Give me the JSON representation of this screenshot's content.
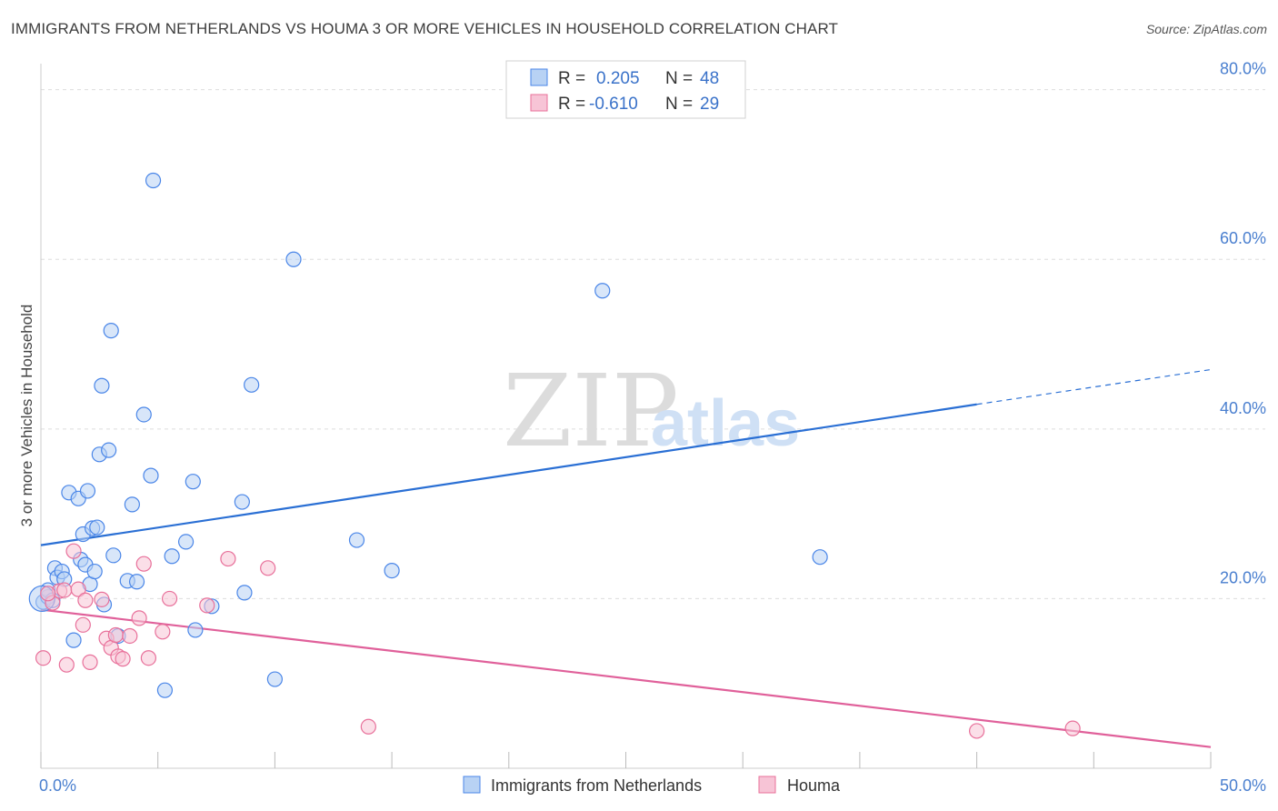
{
  "title": "IMMIGRANTS FROM NETHERLANDS VS HOUMA 3 OR MORE VEHICLES IN HOUSEHOLD CORRELATION CHART",
  "source": "Source: ZipAtlas.com",
  "watermark": {
    "zip": "ZIP",
    "atlas": "atlas"
  },
  "colors": {
    "blue": "#4a86e8",
    "blue_fill": "#b8d2f4",
    "blue_line": "#2a6fd4",
    "pink": "#e8709a",
    "pink_fill": "#f7c4d6",
    "pink_line": "#e0609a",
    "tick": "#4a7fcf",
    "grid": "#dddddd"
  },
  "legend": {
    "rows": [
      {
        "r_label": "R =",
        "r_value": "0.205",
        "n_label": "N =",
        "n_value": "48"
      },
      {
        "r_label": "R =",
        "r_value": "-0.610",
        "n_label": "N =",
        "n_value": "29"
      }
    ]
  },
  "chart_data": {
    "type": "scatter",
    "title": "IMMIGRANTS FROM NETHERLANDS VS HOUMA 3 OR MORE VEHICLES IN HOUSEHOLD CORRELATION CHART",
    "xlabel": "",
    "ylabel": "3 or more Vehicles in Household",
    "xlim": [
      0,
      50
    ],
    "ylim": [
      0,
      82
    ],
    "x_tick_labels": [
      "0.0%",
      "50.0%"
    ],
    "y_ticks": [
      20,
      40,
      60,
      80
    ],
    "y_tick_labels": [
      "20.0%",
      "40.0%",
      "60.0%",
      "80.0%"
    ],
    "grid": true,
    "series": [
      {
        "name": "Immigrants from Netherlands",
        "color": "#4a86e8",
        "points": [
          [
            0.1,
            19.6
          ],
          [
            0.3,
            20.2
          ],
          [
            0.3,
            21.0
          ],
          [
            0.5,
            19.8
          ],
          [
            0.6,
            23.6
          ],
          [
            0.7,
            22.5
          ],
          [
            0.9,
            23.2
          ],
          [
            1.0,
            22.3
          ],
          [
            1.2,
            32.5
          ],
          [
            1.4,
            15.1
          ],
          [
            1.6,
            31.8
          ],
          [
            1.7,
            24.6
          ],
          [
            1.8,
            27.6
          ],
          [
            1.9,
            24.0
          ],
          [
            2.0,
            32.7
          ],
          [
            2.1,
            21.7
          ],
          [
            2.2,
            28.3
          ],
          [
            2.3,
            23.2
          ],
          [
            2.4,
            28.4
          ],
          [
            2.5,
            37.0
          ],
          [
            2.6,
            45.1
          ],
          [
            2.7,
            19.3
          ],
          [
            2.9,
            37.5
          ],
          [
            3.0,
            51.6
          ],
          [
            3.1,
            25.1
          ],
          [
            3.3,
            15.6
          ],
          [
            3.7,
            22.1
          ],
          [
            3.9,
            31.1
          ],
          [
            4.1,
            22.0
          ],
          [
            4.4,
            41.7
          ],
          [
            4.7,
            34.5
          ],
          [
            4.8,
            69.3
          ],
          [
            5.3,
            9.2
          ],
          [
            5.6,
            25.0
          ],
          [
            6.2,
            26.7
          ],
          [
            6.5,
            33.8
          ],
          [
            6.6,
            16.3
          ],
          [
            7.3,
            19.1
          ],
          [
            8.6,
            31.4
          ],
          [
            8.7,
            20.7
          ],
          [
            9.0,
            45.2
          ],
          [
            10.0,
            10.5
          ],
          [
            10.8,
            60.0
          ],
          [
            13.5,
            26.9
          ],
          [
            15.0,
            23.3
          ],
          [
            24.0,
            56.3
          ],
          [
            33.3,
            24.9
          ],
          [
            0.05,
            20.0
          ]
        ],
        "trend": {
          "x": [
            0,
            40,
            50
          ],
          "y": [
            26.3,
            42.9,
            47.0
          ]
        }
      },
      {
        "name": "Houma",
        "color": "#e8709a",
        "points": [
          [
            0.1,
            13.0
          ],
          [
            0.5,
            19.5
          ],
          [
            0.8,
            20.9
          ],
          [
            1.0,
            21.0
          ],
          [
            1.1,
            12.2
          ],
          [
            1.4,
            25.6
          ],
          [
            1.6,
            21.1
          ],
          [
            1.8,
            16.9
          ],
          [
            1.9,
            19.8
          ],
          [
            2.1,
            12.5
          ],
          [
            2.6,
            19.9
          ],
          [
            2.8,
            15.3
          ],
          [
            3.0,
            14.2
          ],
          [
            3.2,
            15.7
          ],
          [
            3.3,
            13.2
          ],
          [
            3.5,
            12.9
          ],
          [
            3.8,
            15.6
          ],
          [
            4.2,
            17.7
          ],
          [
            4.4,
            24.1
          ],
          [
            4.6,
            13.0
          ],
          [
            5.2,
            16.1
          ],
          [
            5.5,
            20.0
          ],
          [
            7.1,
            19.2
          ],
          [
            8.0,
            24.7
          ],
          [
            9.7,
            23.6
          ],
          [
            14.0,
            4.9
          ],
          [
            40.0,
            4.4
          ],
          [
            44.1,
            4.7
          ],
          [
            0.3,
            20.6
          ]
        ],
        "trend": {
          "x": [
            0,
            50
          ],
          "y": [
            18.7,
            2.5
          ]
        }
      }
    ]
  }
}
